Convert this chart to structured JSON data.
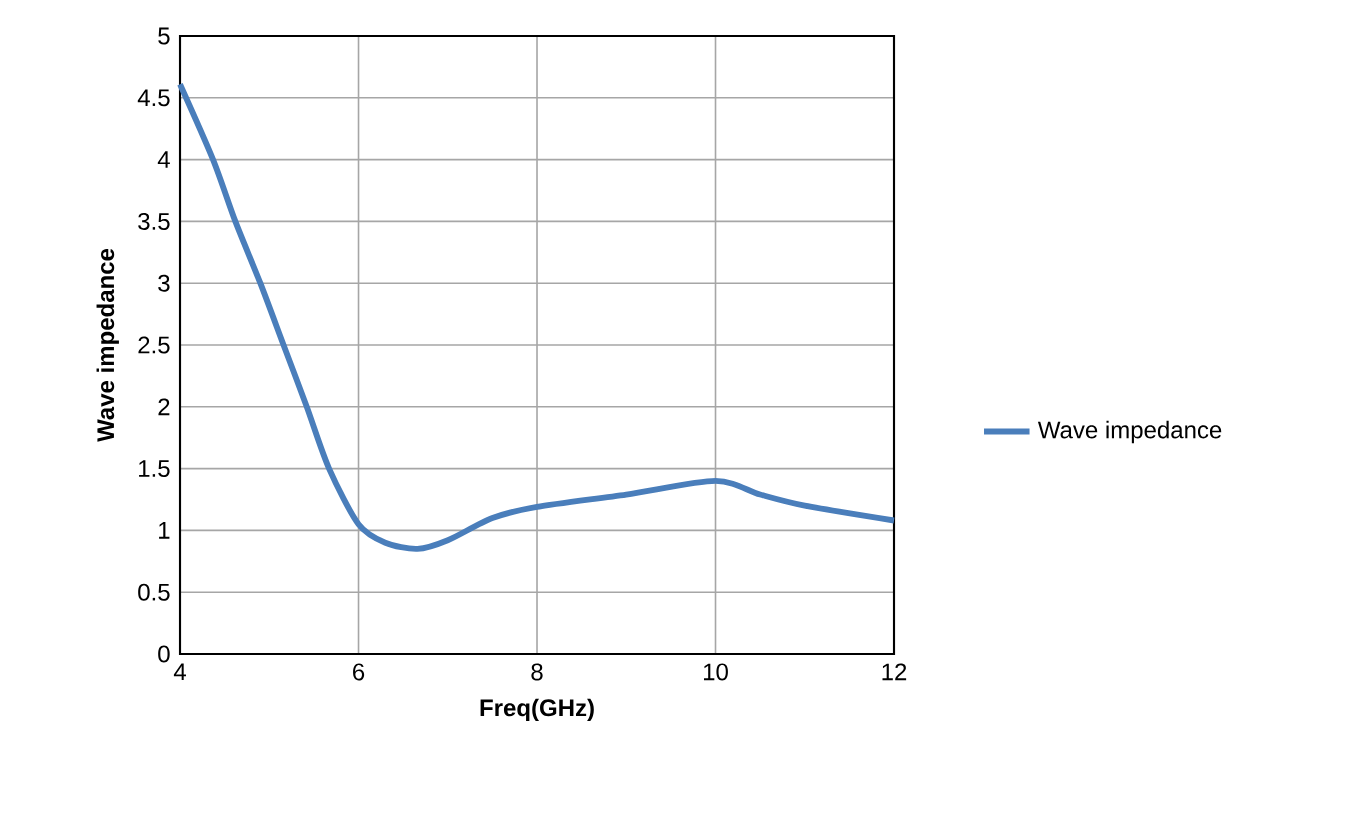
{
  "chart_data": {
    "type": "line",
    "xlabel": "Freq(GHz)",
    "ylabel": "Wave impedance",
    "x": [
      4,
      4.37,
      4.62,
      4.9,
      5.16,
      5.42,
      5.67,
      6,
      6.3,
      6.66,
      7,
      7.5,
      8,
      9,
      10,
      10.5,
      11,
      12
    ],
    "series": [
      {
        "name": "Wave impedance",
        "color": "#4a7ebb",
        "values": [
          4.61,
          4.0,
          3.5,
          3.0,
          2.5,
          2.0,
          1.5,
          1.05,
          0.9,
          0.85,
          0.92,
          1.1,
          1.19,
          1.29,
          1.4,
          1.29,
          1.2,
          1.08
        ]
      }
    ],
    "xlim": [
      4,
      12
    ],
    "ylim": [
      0,
      5
    ],
    "xticks": [
      4,
      6,
      8,
      10,
      12
    ],
    "yticks": [
      0,
      0.5,
      1,
      1.5,
      2,
      2.5,
      3,
      3.5,
      4,
      4.5,
      5
    ],
    "grid": true,
    "legend": "right",
    "marker": "none",
    "line_style": "solid"
  }
}
